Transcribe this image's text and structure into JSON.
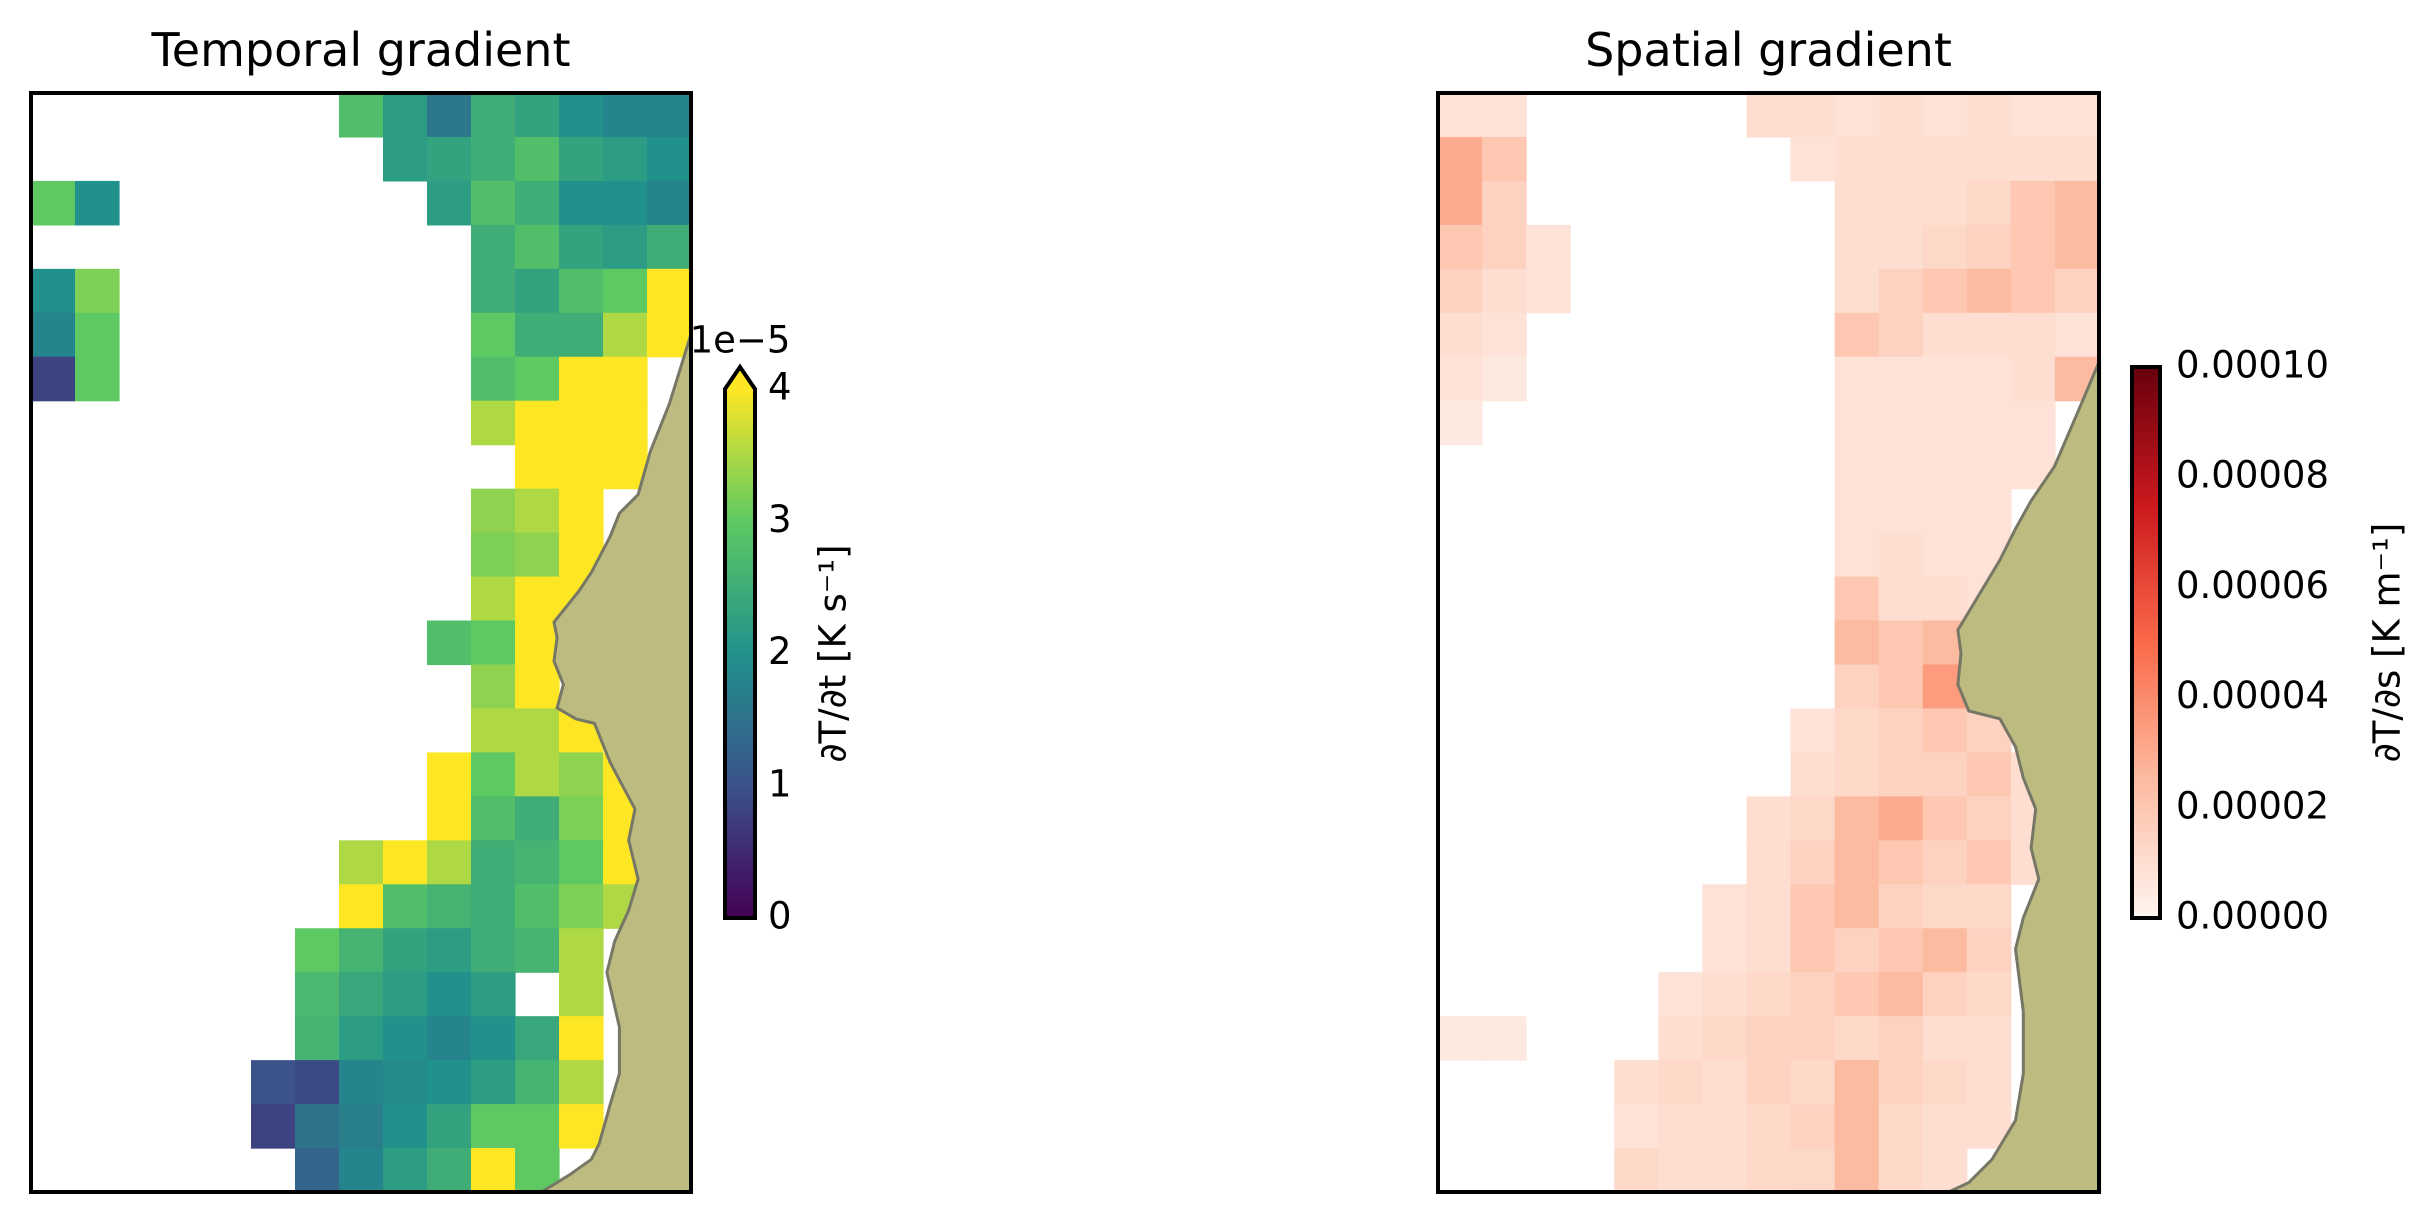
{
  "chart_data": [
    {
      "type": "heatmap",
      "title": "Temporal gradient",
      "cmap": "viridis",
      "clim": [
        0,
        4
      ],
      "extend": "max",
      "cbar_ticks": [
        0,
        1,
        2,
        3,
        4
      ],
      "cbar_offset": "1e−5",
      "cbar_label": "∂T/∂t [K s⁻¹]",
      "z": [
        [
          null,
          null,
          null,
          null,
          null,
          null,
          null,
          2.8,
          2.2,
          1.6,
          2.5,
          2.3,
          2.0,
          1.8,
          1.8
        ],
        [
          null,
          null,
          null,
          null,
          null,
          null,
          null,
          null,
          2.2,
          2.3,
          2.5,
          2.8,
          2.3,
          2.2,
          2.0
        ],
        [
          3.0,
          2.0,
          null,
          null,
          null,
          null,
          null,
          null,
          null,
          2.2,
          2.8,
          2.5,
          2.0,
          2.0,
          1.8
        ],
        [
          null,
          null,
          null,
          null,
          null,
          null,
          null,
          null,
          null,
          null,
          2.5,
          2.8,
          2.3,
          2.2,
          2.5
        ],
        [
          2.0,
          3.2,
          null,
          null,
          null,
          null,
          null,
          null,
          null,
          null,
          2.5,
          2.3,
          2.8,
          3.0,
          4.5
        ],
        [
          1.8,
          3.0,
          null,
          null,
          null,
          null,
          null,
          null,
          null,
          null,
          3.0,
          2.5,
          2.5,
          3.5,
          4.5
        ],
        [
          0.8,
          3.0,
          null,
          null,
          null,
          null,
          null,
          null,
          null,
          null,
          2.8,
          3.0,
          4.2,
          4.5,
          null
        ],
        [
          null,
          null,
          null,
          null,
          null,
          null,
          null,
          null,
          null,
          null,
          3.5,
          4.2,
          4.5,
          4.3,
          null
        ],
        [
          null,
          null,
          null,
          null,
          null,
          null,
          null,
          null,
          null,
          null,
          null,
          4.2,
          4.5,
          4.4,
          null
        ],
        [
          null,
          null,
          null,
          null,
          null,
          null,
          null,
          null,
          null,
          null,
          3.3,
          3.5,
          4.3,
          null,
          null
        ],
        [
          null,
          null,
          null,
          null,
          null,
          null,
          null,
          null,
          null,
          null,
          3.2,
          3.3,
          4.2,
          null,
          null
        ],
        [
          null,
          null,
          null,
          null,
          null,
          null,
          null,
          null,
          null,
          null,
          3.5,
          4.1,
          4.3,
          null,
          null
        ],
        [
          null,
          null,
          null,
          null,
          null,
          null,
          null,
          null,
          null,
          2.8,
          3.0,
          4.2,
          null,
          null,
          null
        ],
        [
          null,
          null,
          null,
          null,
          null,
          null,
          null,
          null,
          null,
          null,
          3.3,
          4.2,
          null,
          null,
          null
        ],
        [
          null,
          null,
          null,
          null,
          null,
          null,
          null,
          null,
          null,
          null,
          3.5,
          3.5,
          4.2,
          null,
          null
        ],
        [
          null,
          null,
          null,
          null,
          null,
          null,
          null,
          null,
          null,
          4.2,
          3.0,
          3.5,
          3.3,
          4.1,
          null
        ],
        [
          null,
          null,
          null,
          null,
          null,
          null,
          null,
          null,
          null,
          4.3,
          2.8,
          2.5,
          3.2,
          4.2,
          null
        ],
        [
          null,
          null,
          null,
          null,
          null,
          null,
          null,
          3.5,
          4.2,
          3.5,
          2.5,
          2.6,
          3.0,
          4.1,
          null
        ],
        [
          null,
          null,
          null,
          null,
          null,
          null,
          null,
          4.3,
          2.8,
          2.6,
          2.5,
          2.8,
          3.2,
          3.5,
          null
        ],
        [
          null,
          null,
          null,
          null,
          null,
          null,
          3.0,
          2.6,
          2.3,
          2.2,
          2.5,
          2.6,
          3.5,
          null,
          null
        ],
        [
          null,
          null,
          null,
          null,
          null,
          null,
          2.7,
          2.4,
          2.2,
          2.0,
          2.2,
          null,
          3.5,
          null,
          null
        ],
        [
          null,
          null,
          null,
          null,
          null,
          null,
          2.6,
          2.2,
          2.0,
          1.8,
          2.0,
          2.4,
          4.2,
          null,
          null
        ],
        [
          null,
          null,
          null,
          null,
          null,
          1.0,
          0.9,
          1.8,
          1.9,
          2.0,
          2.2,
          2.6,
          3.5,
          null,
          null
        ],
        [
          null,
          null,
          null,
          null,
          null,
          0.8,
          1.5,
          1.7,
          2.0,
          2.3,
          3.0,
          3.0,
          4.1,
          null,
          null
        ],
        [
          null,
          null,
          null,
          null,
          null,
          null,
          1.3,
          1.8,
          2.2,
          2.5,
          4.2,
          3.0,
          null,
          null,
          null
        ]
      ]
    },
    {
      "type": "heatmap",
      "title": "Spatial gradient",
      "cmap": "Reds",
      "clim": [
        0,
        0.0001
      ],
      "cbar_ticks": [
        {
          "value": 0,
          "label": "0.00000"
        },
        {
          "value": 2e-05,
          "label": "0.00002"
        },
        {
          "value": 4e-05,
          "label": "0.00004"
        },
        {
          "value": 6e-05,
          "label": "0.00006"
        },
        {
          "value": 8e-05,
          "label": "0.00008"
        },
        {
          "value": 0.0001,
          "label": "0.00010"
        }
      ],
      "cbar_label": "∂T/∂s [K m⁻¹]",
      "z": [
        [
          8e-06,
          8e-06,
          null,
          null,
          null,
          null,
          null,
          1e-05,
          1e-05,
          8e-06,
          1e-05,
          8e-06,
          1e-05,
          8e-06,
          8e-06
        ],
        [
          3e-05,
          2e-05,
          null,
          null,
          null,
          null,
          null,
          null,
          8e-06,
          1e-05,
          1e-05,
          1e-05,
          1e-05,
          1e-05,
          1e-05
        ],
        [
          3e-05,
          1.5e-05,
          null,
          null,
          null,
          null,
          null,
          null,
          null,
          1e-05,
          1e-05,
          1e-05,
          1.3e-05,
          2e-05,
          2.5e-05
        ],
        [
          2e-05,
          1.5e-05,
          8e-06,
          null,
          null,
          null,
          null,
          null,
          null,
          1e-05,
          1e-05,
          1.3e-05,
          1.5e-05,
          2e-05,
          2.5e-05
        ],
        [
          1.5e-05,
          1e-05,
          8e-06,
          null,
          null,
          null,
          null,
          null,
          null,
          1e-05,
          1.5e-05,
          2e-05,
          2.5e-05,
          2e-05,
          1.5e-05
        ],
        [
          1e-05,
          8e-06,
          null,
          null,
          null,
          null,
          null,
          null,
          null,
          2e-05,
          1.5e-05,
          1e-05,
          1e-05,
          1e-05,
          8e-06
        ],
        [
          8e-06,
          5e-06,
          null,
          null,
          null,
          null,
          null,
          null,
          null,
          8e-06,
          8e-06,
          8e-06,
          8e-06,
          1e-05,
          2.5e-05
        ],
        [
          5e-06,
          null,
          null,
          null,
          null,
          null,
          null,
          null,
          null,
          8e-06,
          8e-06,
          8e-06,
          8e-06,
          8e-06,
          null
        ],
        [
          null,
          null,
          null,
          null,
          null,
          null,
          null,
          null,
          null,
          8e-06,
          8e-06,
          8e-06,
          8e-06,
          8e-06,
          null
        ],
        [
          null,
          null,
          null,
          null,
          null,
          null,
          null,
          null,
          null,
          8e-06,
          8e-06,
          8e-06,
          8e-06,
          null,
          null
        ],
        [
          null,
          null,
          null,
          null,
          null,
          null,
          null,
          null,
          null,
          8e-06,
          1e-05,
          8e-06,
          8e-06,
          null,
          null
        ],
        [
          null,
          null,
          null,
          null,
          null,
          null,
          null,
          null,
          null,
          2e-05,
          1e-05,
          1e-05,
          8e-06,
          null,
          null
        ],
        [
          null,
          null,
          null,
          null,
          null,
          null,
          null,
          null,
          null,
          2.5e-05,
          2e-05,
          2.5e-05,
          null,
          null,
          null
        ],
        [
          null,
          null,
          null,
          null,
          null,
          null,
          null,
          null,
          null,
          1.5e-05,
          2e-05,
          3.5e-05,
          null,
          null,
          null
        ],
        [
          null,
          null,
          null,
          null,
          null,
          null,
          null,
          null,
          8e-06,
          1.2e-05,
          1.5e-05,
          2e-05,
          1.5e-05,
          null,
          null
        ],
        [
          null,
          null,
          null,
          null,
          null,
          null,
          null,
          null,
          1e-05,
          1.2e-05,
          1.5e-05,
          1.5e-05,
          2e-05,
          1e-05,
          null
        ],
        [
          null,
          null,
          null,
          null,
          null,
          null,
          null,
          1e-05,
          1.3e-05,
          2.5e-05,
          3e-05,
          2e-05,
          1.5e-05,
          1e-05,
          null
        ],
        [
          null,
          null,
          null,
          null,
          null,
          null,
          null,
          1e-05,
          1.5e-05,
          2.5e-05,
          2e-05,
          1.5e-05,
          2e-05,
          1e-05,
          null
        ],
        [
          null,
          null,
          null,
          null,
          null,
          null,
          8e-06,
          1e-05,
          2e-05,
          2.5e-05,
          1.5e-05,
          1.3e-05,
          1.2e-05,
          null,
          null
        ],
        [
          null,
          null,
          null,
          null,
          null,
          null,
          8e-06,
          1e-05,
          2e-05,
          1.5e-05,
          2e-05,
          2.5e-05,
          1.5e-05,
          null,
          null
        ],
        [
          null,
          null,
          null,
          null,
          null,
          8e-06,
          1e-05,
          1.2e-05,
          1.5e-05,
          2e-05,
          2.5e-05,
          1.5e-05,
          1.2e-05,
          null,
          null
        ],
        [
          5e-06,
          5e-06,
          null,
          null,
          null,
          1e-05,
          1.2e-05,
          1.5e-05,
          1.5e-05,
          1.2e-05,
          1.5e-05,
          1e-05,
          1e-05,
          null,
          null
        ],
        [
          null,
          null,
          null,
          null,
          1e-05,
          1.2e-05,
          1e-05,
          1.5e-05,
          1.2e-05,
          2.5e-05,
          1.5e-05,
          1.2e-05,
          1e-05,
          null,
          null
        ],
        [
          null,
          null,
          null,
          null,
          8e-06,
          1e-05,
          1e-05,
          1.2e-05,
          1.5e-05,
          2.5e-05,
          1.2e-05,
          1e-05,
          1e-05,
          null,
          null
        ],
        [
          null,
          null,
          null,
          null,
          1.2e-05,
          1e-05,
          1e-05,
          1.2e-05,
          1.3e-05,
          2.5e-05,
          1.2e-05,
          1e-05,
          null,
          null,
          null
        ]
      ]
    }
  ]
}
